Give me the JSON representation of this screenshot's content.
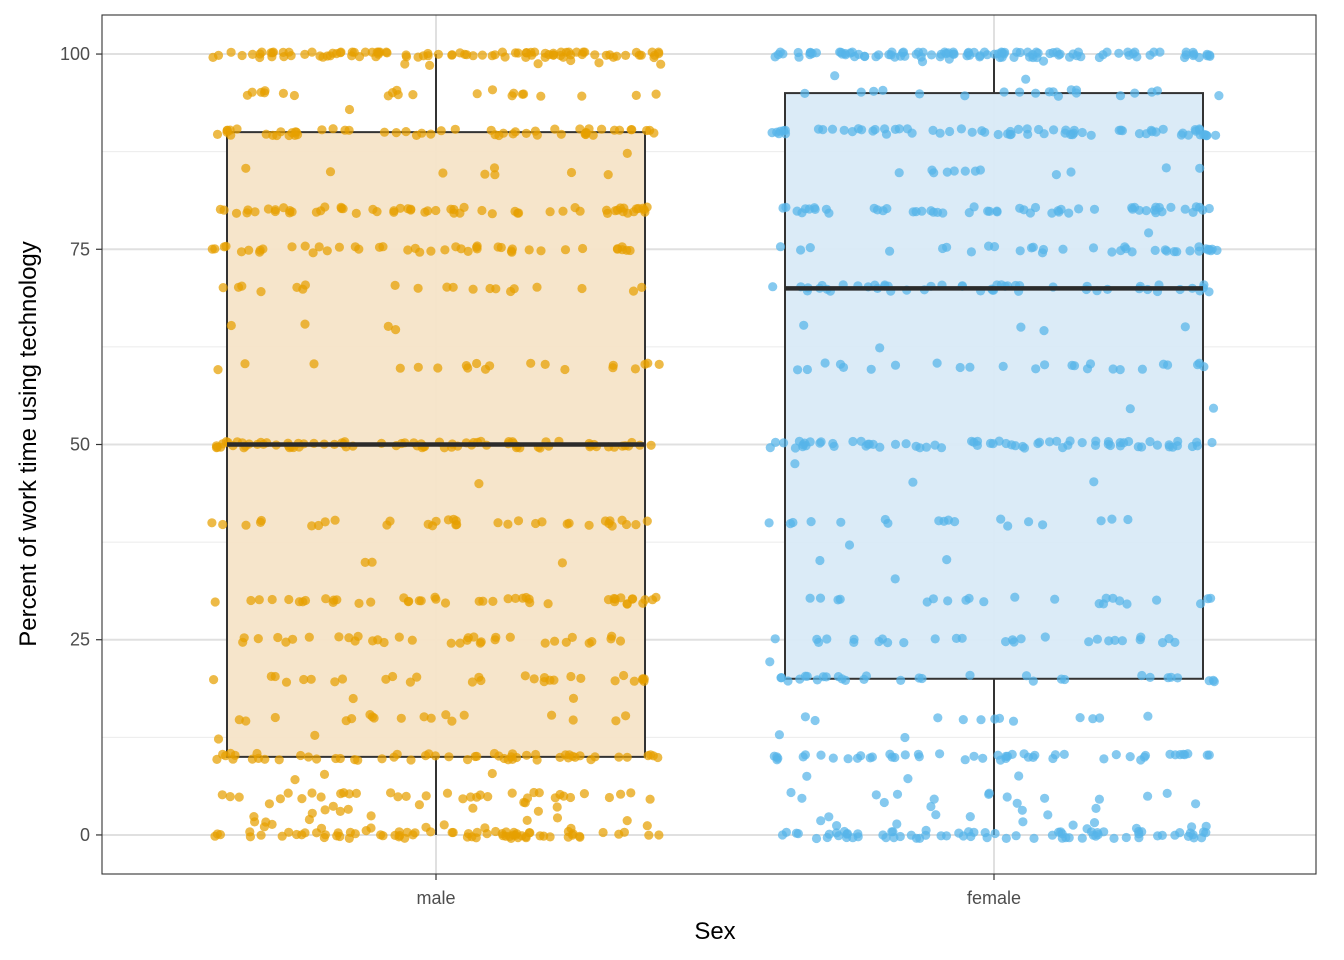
{
  "chart_data": {
    "type": "boxplot-jitter",
    "title": "",
    "xlabel": "Sex",
    "ylabel": "Percent of work time using technology",
    "categories": [
      "male",
      "female"
    ],
    "ylim": [
      -5,
      105
    ],
    "yticks": [
      0,
      25,
      50,
      75,
      100
    ],
    "grid": true,
    "boxes": [
      {
        "name": "male",
        "whisker_low": 0,
        "q1": 10,
        "median": 50,
        "q3": 90,
        "whisker_high": 100,
        "fill": "#f5e4c8",
        "point_color": "#E69F00"
      },
      {
        "name": "female",
        "whisker_low": 0,
        "q1": 20,
        "median": 70,
        "q3": 95,
        "whisker_high": 100,
        "fill": "#d9eaf7",
        "point_color": "#56B4E9"
      }
    ],
    "points": {
      "male": {
        "levels": [
          0,
          1,
          2,
          3,
          4,
          5,
          7.5,
          10,
          12.5,
          15,
          17.5,
          20,
          25,
          30,
          35,
          40,
          45,
          50,
          60,
          65,
          70,
          75,
          80,
          85,
          87.5,
          90,
          92.5,
          95,
          99,
          100
        ],
        "counts": [
          70,
          10,
          8,
          6,
          6,
          35,
          3,
          55,
          2,
          18,
          2,
          30,
          35,
          45,
          3,
          35,
          1,
          80,
          20,
          4,
          20,
          45,
          60,
          8,
          1,
          55,
          1,
          22,
          6,
          95
        ]
      },
      "female": {
        "levels": [
          0,
          1,
          2,
          3,
          4,
          5,
          7.5,
          10,
          12.5,
          15,
          20,
          22.5,
          25,
          30,
          33,
          35,
          37.5,
          40,
          45,
          47.5,
          50,
          55,
          60,
          62.5,
          65,
          70,
          75,
          77.5,
          80,
          85,
          90,
          95,
          97,
          99,
          100
        ],
        "counts": [
          70,
          8,
          5,
          4,
          4,
          12,
          3,
          50,
          2,
          12,
          30,
          1,
          28,
          22,
          1,
          2,
          1,
          18,
          2,
          1,
          70,
          2,
          25,
          1,
          4,
          50,
          35,
          1,
          55,
          12,
          70,
          20,
          2,
          3,
          105
        ]
      }
    }
  }
}
